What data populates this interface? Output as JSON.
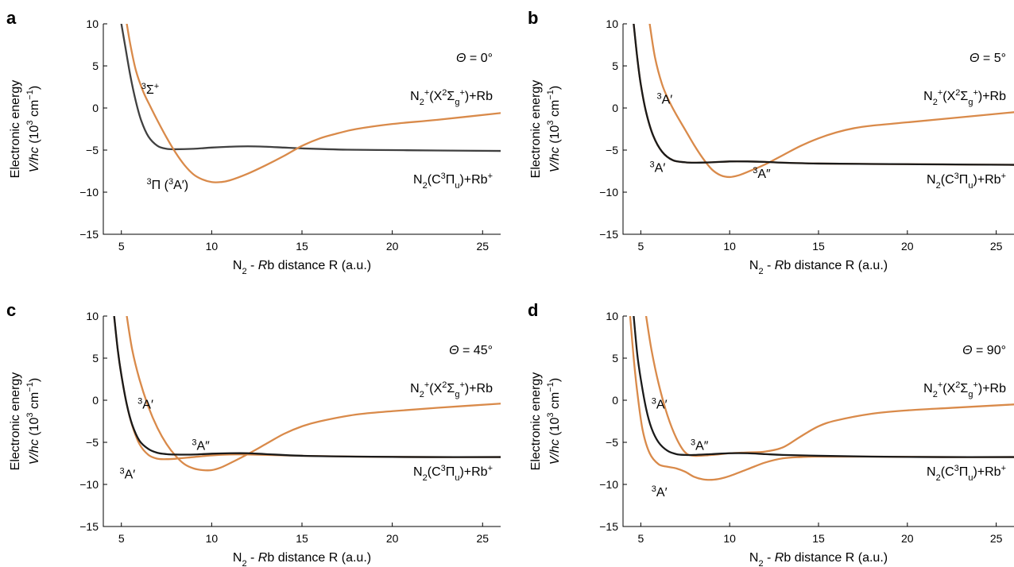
{
  "colors": {
    "orange": "#d98a4a",
    "black": "#1a1a1a",
    "darkgray": "#404040"
  },
  "chart_data": [
    {
      "type": "line",
      "panel_label": "a",
      "angle_label": "Θ = 0°",
      "xlabel": "N2 - Rb distance R (a.u.)",
      "ylabel_line1": "Electronic energy",
      "ylabel_line2": "V/hc (10³ cm⁻¹)",
      "xlim": [
        4,
        26
      ],
      "ylim": [
        -15,
        10
      ],
      "xticks": [
        5,
        10,
        15,
        20,
        25
      ],
      "yticks": [
        -15,
        -10,
        -5,
        0,
        5,
        10
      ],
      "asymptote_upper": "N₂⁺(X²Σg⁺)+Rb",
      "asymptote_lower": "N₂(C³Πu)+Rb⁺",
      "series": [
        {
          "name": "³Σ⁺",
          "color": "darkgray",
          "label_at": [
            6.1,
            1.7
          ],
          "x": [
            5.0,
            5.2,
            5.5,
            5.8,
            6.1,
            6.5,
            7.0,
            7.5,
            8.0,
            9.0,
            10.0,
            11.0,
            12.0,
            13.0,
            14.0,
            15.0,
            17.5,
            20.0,
            22.5,
            26.0
          ],
          "y": [
            10,
            7.5,
            3.8,
            0.8,
            -1.5,
            -3.4,
            -4.5,
            -4.85,
            -4.9,
            -4.85,
            -4.7,
            -4.6,
            -4.55,
            -4.6,
            -4.7,
            -4.8,
            -4.95,
            -5.0,
            -5.05,
            -5.1
          ]
        },
        {
          "name": "³Π (³A′)",
          "color": "orange",
          "label_at": [
            6.4,
            -9.6
          ],
          "x": [
            5.3,
            5.5,
            5.8,
            6.2,
            6.6,
            7.0,
            7.5,
            8.0,
            8.5,
            9.0,
            9.5,
            10.0,
            10.5,
            11.0,
            12.0,
            13.0,
            14.0,
            15.0,
            16.0,
            17.0,
            18.0,
            20.0,
            22.5,
            26.0
          ],
          "y": [
            10,
            7.5,
            4.5,
            2.0,
            0.2,
            -1.5,
            -3.5,
            -5.3,
            -6.8,
            -7.9,
            -8.5,
            -8.8,
            -8.8,
            -8.6,
            -7.8,
            -6.8,
            -5.7,
            -4.5,
            -3.6,
            -3.0,
            -2.5,
            -1.9,
            -1.4,
            -0.6
          ]
        }
      ]
    },
    {
      "type": "line",
      "panel_label": "b",
      "angle_label": "Θ = 5°",
      "xlabel": "N2 - Rb distance R (a.u.)",
      "ylabel_line1": "Electronic energy",
      "ylabel_line2": "V/hc (10³ cm⁻¹)",
      "xlim": [
        4,
        26
      ],
      "ylim": [
        -15,
        10
      ],
      "xticks": [
        5,
        10,
        15,
        20,
        25
      ],
      "yticks": [
        -15,
        -10,
        -5,
        0,
        5,
        10
      ],
      "asymptote_upper": "N₂⁺(X²Σg⁺)+Rb",
      "asymptote_lower": "N₂(C³Πu)+Rb⁺",
      "series": [
        {
          "name": "³A′",
          "color": "orange",
          "label_at": [
            5.9,
            0.5
          ],
          "x": [
            5.5,
            5.8,
            6.2,
            6.6,
            7.0,
            7.5,
            8.0,
            8.5,
            9.0,
            9.5,
            10.0,
            10.5,
            11.0,
            12.0,
            13.0,
            14.0,
            15.0,
            16.0,
            17.0,
            18.0,
            20.0,
            22.5,
            26.0
          ],
          "y": [
            10,
            6.0,
            2.8,
            0.8,
            -0.8,
            -2.6,
            -4.4,
            -6.0,
            -7.3,
            -8.0,
            -8.2,
            -8.0,
            -7.6,
            -6.7,
            -5.6,
            -4.5,
            -3.6,
            -2.9,
            -2.4,
            -2.1,
            -1.7,
            -1.2,
            -0.5
          ]
        },
        {
          "name": "³A′",
          "color": "orange",
          "label_at": [
            5.5,
            -7.6
          ],
          "x": [
            4.6,
            4.8,
            5.0,
            5.3,
            5.7,
            6.2,
            6.8,
            7.5,
            8.0,
            9.0,
            10.0,
            11.0,
            12.0,
            13.0,
            15.0,
            18.0,
            22.0,
            26.0
          ],
          "y": [
            10,
            6.0,
            2.8,
            -0.5,
            -3.3,
            -5.2,
            -6.2,
            -6.45,
            -6.5,
            -6.45,
            -6.35,
            -6.35,
            -6.4,
            -6.5,
            -6.6,
            -6.65,
            -6.7,
            -6.75
          ]
        },
        {
          "name": "³A″",
          "color": "black",
          "label_at": [
            11.3,
            -8.3
          ],
          "x": [
            4.6,
            4.8,
            5.0,
            5.3,
            5.7,
            6.2,
            6.8,
            7.5,
            8.0,
            9.0,
            10.0,
            11.0,
            12.0,
            13.0,
            15.0,
            18.0,
            22.0,
            26.0
          ],
          "y": [
            10,
            6.0,
            2.8,
            -0.5,
            -3.3,
            -5.2,
            -6.2,
            -6.45,
            -6.5,
            -6.45,
            -6.35,
            -6.35,
            -6.4,
            -6.5,
            -6.6,
            -6.65,
            -6.7,
            -6.75
          ]
        }
      ]
    },
    {
      "type": "line",
      "panel_label": "c",
      "angle_label": "Θ = 45°",
      "xlabel": "N2 - Rb distance R (a.u.)",
      "ylabel_line1": "Electronic energy",
      "ylabel_line2": "V/hc (10³ cm⁻¹)",
      "xlim": [
        4,
        26
      ],
      "ylim": [
        -15,
        10
      ],
      "xticks": [
        5,
        10,
        15,
        20,
        25
      ],
      "yticks": [
        -15,
        -10,
        -5,
        0,
        5,
        10
      ],
      "asymptote_upper": "N₂⁺(X²Σg⁺)+Rb",
      "asymptote_lower": "N₂(C³Πu)+Rb⁺",
      "series": [
        {
          "name": "³A′",
          "color": "orange",
          "label_at": [
            5.9,
            -1.0
          ],
          "x": [
            5.3,
            5.6,
            6.0,
            6.5,
            7.0,
            7.5,
            8.0,
            8.5,
            9.0,
            9.5,
            10.0,
            10.5,
            11.0,
            12.0,
            13.0,
            14.0,
            15.0,
            16.0,
            18.0,
            20.0,
            22.5,
            26.0
          ],
          "y": [
            10,
            6.0,
            2.5,
            -0.8,
            -3.3,
            -5.2,
            -6.6,
            -7.6,
            -8.1,
            -8.3,
            -8.3,
            -8.0,
            -7.5,
            -6.4,
            -5.2,
            -4.0,
            -3.1,
            -2.5,
            -1.7,
            -1.3,
            -0.9,
            -0.4
          ]
        },
        {
          "name": "³A′",
          "color": "orange",
          "label_at": [
            4.9,
            -9.3
          ],
          "x": [
            4.6,
            4.8,
            5.0,
            5.3,
            5.6,
            6.0,
            6.5,
            7.0,
            7.5,
            8.0,
            9.0,
            10.0,
            11.0,
            12.0,
            13.0,
            15.0,
            18.0,
            22.0,
            26.0
          ],
          "y": [
            10,
            6.0,
            3.0,
            -0.5,
            -3.0,
            -5.2,
            -6.5,
            -6.95,
            -7.0,
            -6.95,
            -6.75,
            -6.55,
            -6.45,
            -6.45,
            -6.5,
            -6.6,
            -6.7,
            -6.75,
            -6.75
          ]
        },
        {
          "name": "³A″",
          "color": "black",
          "label_at": [
            8.9,
            -5.9
          ],
          "x": [
            4.6,
            4.8,
            5.0,
            5.3,
            5.6,
            6.0,
            6.5,
            7.0,
            7.5,
            8.0,
            9.0,
            10.0,
            11.0,
            12.0,
            13.0,
            15.0,
            18.0,
            22.0,
            26.0
          ],
          "y": [
            10,
            6.0,
            3.0,
            -0.5,
            -2.9,
            -4.8,
            -5.8,
            -6.25,
            -6.4,
            -6.45,
            -6.45,
            -6.35,
            -6.3,
            -6.3,
            -6.4,
            -6.6,
            -6.7,
            -6.75,
            -6.75
          ]
        }
      ]
    },
    {
      "type": "line",
      "panel_label": "d",
      "angle_label": "Θ = 90°",
      "xlabel": "N2 - Rb distance R (a.u.)",
      "ylabel_line1": "Electronic energy",
      "ylabel_line2": "V/hc (10³ cm⁻¹)",
      "xlim": [
        4,
        26
      ],
      "ylim": [
        -15,
        10
      ],
      "xticks": [
        5,
        10,
        15,
        20,
        25
      ],
      "yticks": [
        -15,
        -10,
        -5,
        0,
        5,
        10
      ],
      "asymptote_upper": "N₂⁺(X²Σg⁺)+Rb",
      "asymptote_lower": "N₂(C³Πu)+Rb⁺",
      "series": [
        {
          "name": "³A′",
          "color": "orange",
          "label_at": [
            5.6,
            -1.0
          ],
          "x": [
            5.3,
            5.6,
            6.0,
            6.5,
            7.0,
            7.5,
            8.0,
            9.0,
            10.0,
            11.0,
            12.0,
            13.0,
            14.0,
            15.0,
            16.0,
            18.0,
            20.0,
            22.5,
            26.0
          ],
          "y": [
            10,
            6.0,
            2.0,
            -1.8,
            -4.5,
            -6.2,
            -6.6,
            -6.5,
            -6.3,
            -6.2,
            -6.1,
            -5.6,
            -4.3,
            -3.1,
            -2.4,
            -1.6,
            -1.2,
            -0.9,
            -0.5
          ]
        },
        {
          "name": "³A′",
          "color": "orange",
          "label_at": [
            5.6,
            -11.4
          ],
          "x": [
            4.4,
            4.6,
            4.8,
            5.1,
            5.5,
            6.0,
            6.5,
            7.0,
            7.5,
            8.0,
            8.5,
            9.0,
            9.5,
            10.0,
            11.0,
            12.0,
            13.0,
            14.0,
            15.0,
            18.0,
            22.0,
            26.0
          ],
          "y": [
            10,
            5.0,
            1.0,
            -3.5,
            -6.3,
            -7.6,
            -7.9,
            -8.1,
            -8.5,
            -9.1,
            -9.4,
            -9.45,
            -9.3,
            -9.0,
            -8.2,
            -7.4,
            -6.9,
            -6.75,
            -6.7,
            -6.7,
            -6.75,
            -6.75
          ]
        },
        {
          "name": "³A″",
          "color": "black",
          "label_at": [
            7.8,
            -5.9
          ],
          "x": [
            4.6,
            4.8,
            5.0,
            5.3,
            5.6,
            6.0,
            6.5,
            7.0,
            7.5,
            8.0,
            9.0,
            10.0,
            11.0,
            12.0,
            13.0,
            15.0,
            18.0,
            22.0,
            26.0
          ],
          "y": [
            10,
            5.5,
            2.5,
            -1.0,
            -3.3,
            -5.0,
            -6.0,
            -6.4,
            -6.5,
            -6.5,
            -6.4,
            -6.3,
            -6.3,
            -6.4,
            -6.5,
            -6.6,
            -6.7,
            -6.75,
            -6.75
          ]
        }
      ]
    }
  ]
}
